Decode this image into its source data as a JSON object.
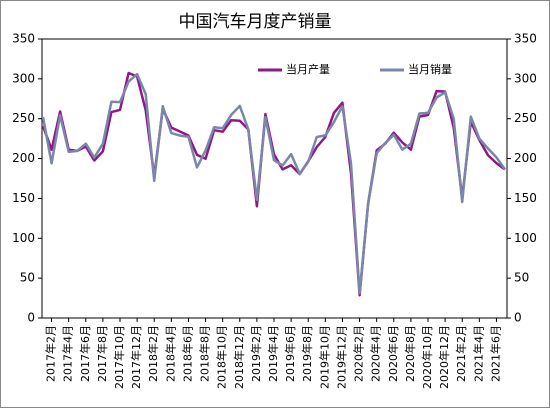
{
  "chart_data": {
    "type": "line",
    "title": "中国汽车月度产销量",
    "categories": [
      null,
      "2017年2月",
      null,
      "2017年4月",
      null,
      "2017年6月",
      null,
      "2017年8月",
      null,
      "2017年10月",
      null,
      "2017年12月",
      null,
      "2018年2月",
      null,
      "2018年4月",
      null,
      "2018年6月",
      null,
      "2018年8月",
      null,
      "2018年10月",
      null,
      "2018年12月",
      null,
      "2019年2月",
      null,
      "2019年4月",
      null,
      "2019年6月",
      null,
      "2019年8月",
      null,
      "2019年10月",
      null,
      "2019年12月",
      null,
      "2020年2月",
      null,
      "2020年4月",
      null,
      "2020年6月",
      null,
      "2020年8月",
      null,
      "2020年10月",
      null,
      "2020年12月",
      null,
      "2021年2月",
      null,
      "2021年4月",
      null,
      "2021年6月",
      null
    ],
    "series": [
      {
        "name": "当月产量",
        "color": "#8b1a89",
        "values": [
          240.9,
          211.1,
          259.1,
          211.1,
          209.6,
          215.1,
          197.6,
          209.1,
          258.3,
          261.1,
          307.4,
          302.9,
          260.7,
          177.7,
          262.6,
          238.9,
          233.9,
          228.9,
          204.6,
          199.9,
          235.6,
          233.7,
          248.1,
          247.4,
          236.6,
          140.1,
          255.8,
          205.2,
          186.4,
          191.6,
          180.7,
          196.6,
          214.5,
          227.0,
          257.3,
          270.1,
          181.4,
          28.5,
          143.2,
          210.2,
          218.7,
          232.5,
          220.3,
          211.1,
          252.6,
          254.7,
          284.7,
          284.0,
          238.8,
          150.3,
          246.4,
          223.4,
          204.3,
          194.3,
          186.3
        ]
      },
      {
        "name": "当月销量",
        "color": "#7b86aa",
        "values": [
          252.2,
          193.9,
          254.4,
          208.4,
          209.6,
          218.6,
          201.3,
          218.6,
          271.3,
          270.9,
          296.5,
          305.9,
          280.9,
          172.3,
          265.6,
          231.9,
          228.8,
          227.4,
          188.9,
          210.3,
          239.4,
          238.0,
          254.8,
          266.1,
          236.7,
          148.2,
          252.0,
          198.0,
          191.3,
          205.6,
          180.8,
          195.8,
          227.1,
          229.1,
          245.6,
          265.6,
          194.1,
          31.0,
          143.0,
          207.0,
          219.4,
          230.0,
          211.2,
          218.6,
          256.5,
          257.3,
          276.6,
          283.1,
          250.3,
          145.5,
          252.6,
          225.2,
          212.8,
          201.5,
          186.4
        ]
      }
    ],
    "ylim": [
      0,
      350
    ],
    "yticks": [
      0,
      50,
      100,
      150,
      200,
      250,
      300,
      350
    ],
    "y2lim": [
      0,
      350
    ],
    "y2ticks": [
      0,
      50,
      100,
      150,
      200,
      250,
      300,
      350
    ],
    "legend": "top"
  }
}
